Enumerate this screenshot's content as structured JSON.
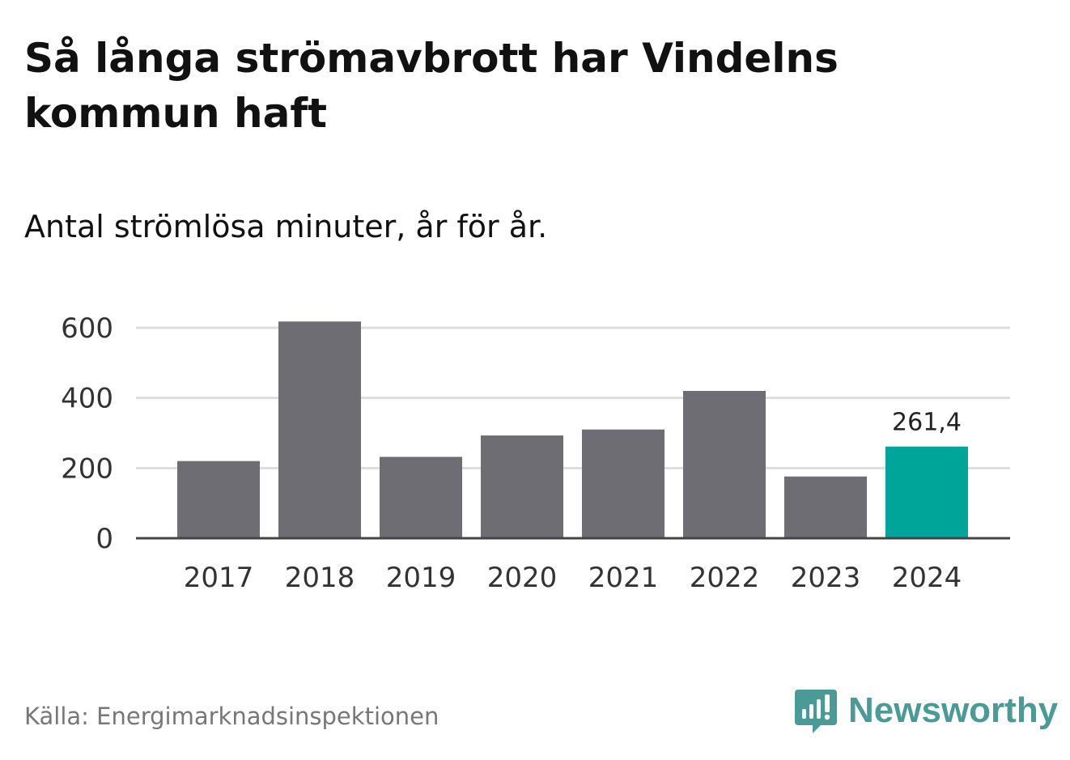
{
  "title": "Så långa strömavbrott har Vindelns kommun haft",
  "subtitle": "Antal strömlösa minuter, år för år.",
  "source": "Källa: Energimarknadsinspektionen",
  "brand": {
    "name": "Newsworthy",
    "icon": "newsworthy-logo-icon"
  },
  "colors": {
    "bar": "#6e6d73",
    "highlight": "#00a59a",
    "grid": "#dddddd",
    "axis": "#444444"
  },
  "chart_data": {
    "type": "bar",
    "categories": [
      "2017",
      "2018",
      "2019",
      "2020",
      "2021",
      "2022",
      "2023",
      "2024"
    ],
    "values": [
      220,
      618,
      232,
      293,
      310,
      420,
      176,
      261.4
    ],
    "highlight_index": 7,
    "data_labels": {
      "7": "261,4"
    },
    "yticks": [
      0,
      200,
      400,
      600
    ],
    "ylim": [
      0,
      640
    ],
    "grid": true,
    "legend": "none"
  }
}
